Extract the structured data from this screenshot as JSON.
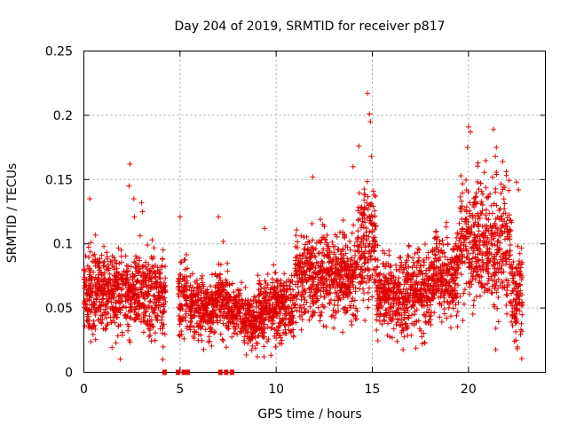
{
  "chart_data": {
    "type": "scatter",
    "title": "Day 204 of 2019, SRMTID for receiver p817",
    "xlabel": "GPS time / hours",
    "ylabel": "SRMTID / TECUs",
    "xlim": [
      0,
      24
    ],
    "ylim": [
      0,
      0.25
    ],
    "x_ticks": [
      0,
      5,
      10,
      15,
      20
    ],
    "x_tick_labels": [
      "0",
      "5",
      "10",
      "15",
      "20"
    ],
    "y_ticks": [
      0,
      0.05,
      0.1,
      0.15,
      0.2,
      0.25
    ],
    "y_tick_labels": [
      "0",
      "0.05",
      "0.1",
      "0.15",
      "0.2",
      "0.25"
    ],
    "grid": true,
    "marker": "plus",
    "color": "#e00000",
    "series": [
      {
        "name": "SRMTID",
        "segments": [
          {
            "x_range": [
              0.0,
              4.25
            ],
            "mean": 0.062,
            "spread": 0.022
          },
          {
            "x_range": [
              4.9,
              5.4
            ],
            "mean": 0.06,
            "spread": 0.02
          },
          {
            "x_range": [
              5.5,
              6.8
            ],
            "mean": 0.05,
            "spread": 0.015
          },
          {
            "x_range": [
              6.8,
              7.5
            ],
            "mean": 0.055,
            "spread": 0.018
          },
          {
            "x_range": [
              7.5,
              8.2
            ],
            "mean": 0.048,
            "spread": 0.012
          },
          {
            "x_range": [
              8.2,
              9.0
            ],
            "mean": 0.04,
            "spread": 0.014
          },
          {
            "x_range": [
              9.0,
              11.0
            ],
            "mean": 0.05,
            "spread": 0.018
          },
          {
            "x_range": [
              11.0,
              12.8
            ],
            "mean": 0.075,
            "spread": 0.022
          },
          {
            "x_range": [
              12.8,
              14.2
            ],
            "mean": 0.075,
            "spread": 0.02
          },
          {
            "x_range": [
              14.2,
              15.2
            ],
            "mean": 0.1,
            "spread": 0.03
          },
          {
            "x_range": [
              15.2,
              16.8
            ],
            "mean": 0.06,
            "spread": 0.02
          },
          {
            "x_range": [
              16.8,
              18.2
            ],
            "mean": 0.065,
            "spread": 0.022
          },
          {
            "x_range": [
              18.2,
              19.5
            ],
            "mean": 0.075,
            "spread": 0.022
          },
          {
            "x_range": [
              19.5,
              21.2
            ],
            "mean": 0.1,
            "spread": 0.03
          },
          {
            "x_range": [
              21.2,
              22.2
            ],
            "mean": 0.1,
            "spread": 0.03
          },
          {
            "x_range": [
              22.2,
              22.8
            ],
            "mean": 0.06,
            "spread": 0.025
          }
        ],
        "highlights": [
          {
            "x": 2.4,
            "y": 0.162
          },
          {
            "x": 2.35,
            "y": 0.145
          },
          {
            "x": 2.6,
            "y": 0.135
          },
          {
            "x": 3.0,
            "y": 0.132
          },
          {
            "x": 3.05,
            "y": 0.125
          },
          {
            "x": 0.3,
            "y": 0.135
          },
          {
            "x": 4.1,
            "y": 0.01
          },
          {
            "x": 5.0,
            "y": 0.121
          },
          {
            "x": 7.0,
            "y": 0.121
          },
          {
            "x": 9.4,
            "y": 0.112
          },
          {
            "x": 11.9,
            "y": 0.152
          },
          {
            "x": 14.75,
            "y": 0.217
          },
          {
            "x": 14.85,
            "y": 0.201
          },
          {
            "x": 14.9,
            "y": 0.195
          },
          {
            "x": 14.3,
            "y": 0.176
          },
          {
            "x": 14.95,
            "y": 0.168
          },
          {
            "x": 14.0,
            "y": 0.16
          },
          {
            "x": 20.0,
            "y": 0.191
          },
          {
            "x": 20.1,
            "y": 0.187
          },
          {
            "x": 19.95,
            "y": 0.175
          },
          {
            "x": 21.3,
            "y": 0.189
          },
          {
            "x": 21.45,
            "y": 0.175
          },
          {
            "x": 21.4,
            "y": 0.168
          },
          {
            "x": 20.5,
            "y": 0.163
          },
          {
            "x": 22.5,
            "y": 0.148
          },
          {
            "x": 22.6,
            "y": 0.142
          }
        ],
        "zero_points_x": [
          4.2,
          4.9,
          5.2,
          5.4,
          7.1,
          7.4,
          7.7
        ]
      }
    ]
  }
}
